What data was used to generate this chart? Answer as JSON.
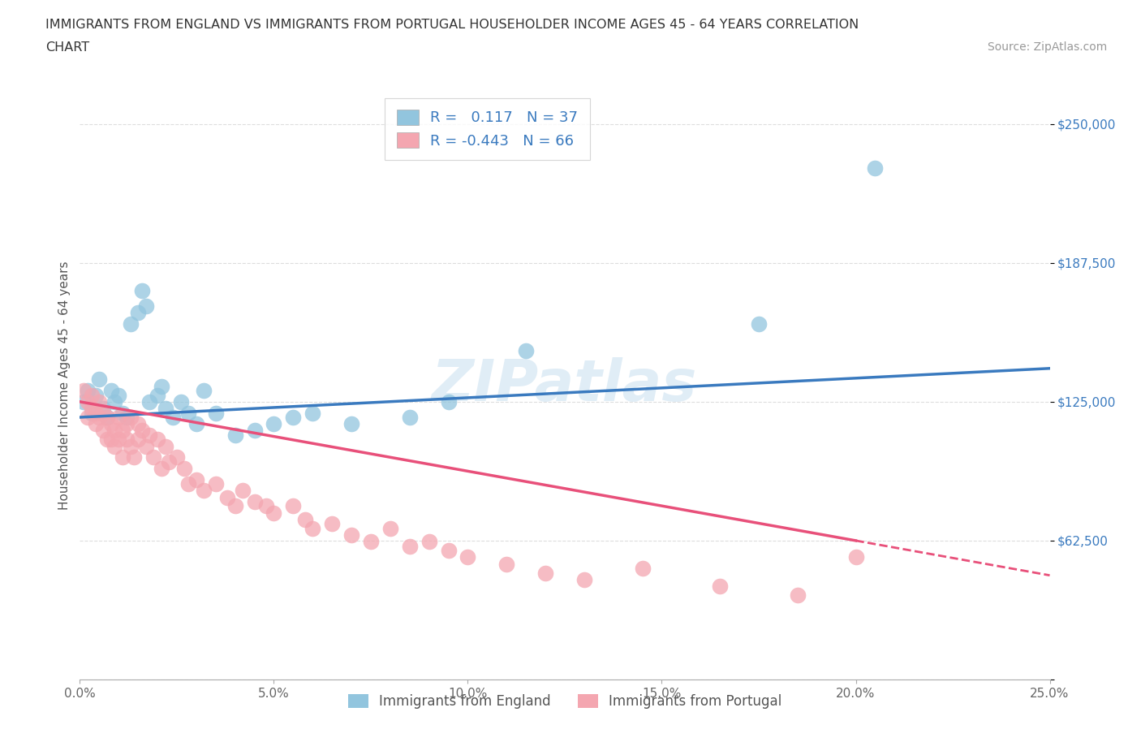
{
  "title_line1": "IMMIGRANTS FROM ENGLAND VS IMMIGRANTS FROM PORTUGAL HOUSEHOLDER INCOME AGES 45 - 64 YEARS CORRELATION",
  "title_line2": "CHART",
  "source": "Source: ZipAtlas.com",
  "ylabel": "Householder Income Ages 45 - 64 years",
  "xlim": [
    0.0,
    0.25
  ],
  "ylim": [
    0,
    265000
  ],
  "yticks": [
    0,
    62500,
    125000,
    187500,
    250000
  ],
  "ytick_labels": [
    "",
    "$62,500",
    "$125,000",
    "$187,500",
    "$250,000"
  ],
  "xticks": [
    0.0,
    0.05,
    0.1,
    0.15,
    0.2,
    0.25
  ],
  "xtick_labels": [
    "0.0%",
    "5.0%",
    "10.0%",
    "15.0%",
    "20.0%",
    "25.0%"
  ],
  "england_R": 0.117,
  "england_N": 37,
  "portugal_R": -0.443,
  "portugal_N": 66,
  "england_color": "#92c5de",
  "portugal_color": "#f4a6b0",
  "england_line_color": "#3a7abf",
  "portugal_line_color": "#e8507a",
  "england_x": [
    0.001,
    0.002,
    0.003,
    0.004,
    0.005,
    0.006,
    0.007,
    0.008,
    0.009,
    0.01,
    0.011,
    0.012,
    0.013,
    0.015,
    0.016,
    0.017,
    0.018,
    0.02,
    0.021,
    0.022,
    0.024,
    0.026,
    0.028,
    0.03,
    0.032,
    0.035,
    0.04,
    0.045,
    0.05,
    0.055,
    0.06,
    0.07,
    0.085,
    0.095,
    0.115,
    0.175,
    0.205
  ],
  "england_y": [
    125000,
    130000,
    120000,
    128000,
    135000,
    122000,
    118000,
    130000,
    125000,
    128000,
    120000,
    118000,
    160000,
    165000,
    175000,
    168000,
    125000,
    128000,
    132000,
    122000,
    118000,
    125000,
    120000,
    115000,
    130000,
    120000,
    110000,
    112000,
    115000,
    118000,
    120000,
    115000,
    118000,
    125000,
    148000,
    160000,
    230000
  ],
  "portugal_x": [
    0.001,
    0.002,
    0.002,
    0.003,
    0.003,
    0.004,
    0.004,
    0.005,
    0.005,
    0.006,
    0.006,
    0.007,
    0.007,
    0.008,
    0.008,
    0.009,
    0.009,
    0.01,
    0.01,
    0.011,
    0.011,
    0.012,
    0.012,
    0.013,
    0.013,
    0.014,
    0.015,
    0.015,
    0.016,
    0.017,
    0.018,
    0.019,
    0.02,
    0.021,
    0.022,
    0.023,
    0.025,
    0.027,
    0.028,
    0.03,
    0.032,
    0.035,
    0.038,
    0.04,
    0.042,
    0.045,
    0.048,
    0.05,
    0.055,
    0.058,
    0.06,
    0.065,
    0.07,
    0.075,
    0.08,
    0.085,
    0.09,
    0.095,
    0.1,
    0.11,
    0.12,
    0.13,
    0.145,
    0.165,
    0.185,
    0.2
  ],
  "portugal_y": [
    130000,
    125000,
    118000,
    128000,
    122000,
    120000,
    115000,
    118000,
    125000,
    112000,
    120000,
    108000,
    118000,
    115000,
    108000,
    112000,
    105000,
    118000,
    108000,
    112000,
    100000,
    108000,
    115000,
    105000,
    118000,
    100000,
    108000,
    115000,
    112000,
    105000,
    110000,
    100000,
    108000,
    95000,
    105000,
    98000,
    100000,
    95000,
    88000,
    90000,
    85000,
    88000,
    82000,
    78000,
    85000,
    80000,
    78000,
    75000,
    78000,
    72000,
    68000,
    70000,
    65000,
    62000,
    68000,
    60000,
    62000,
    58000,
    55000,
    52000,
    48000,
    45000,
    50000,
    42000,
    38000,
    55000
  ],
  "watermark": "ZIPatlas",
  "hgrid_color": "#dddddd",
  "bg_color": "#ffffff"
}
